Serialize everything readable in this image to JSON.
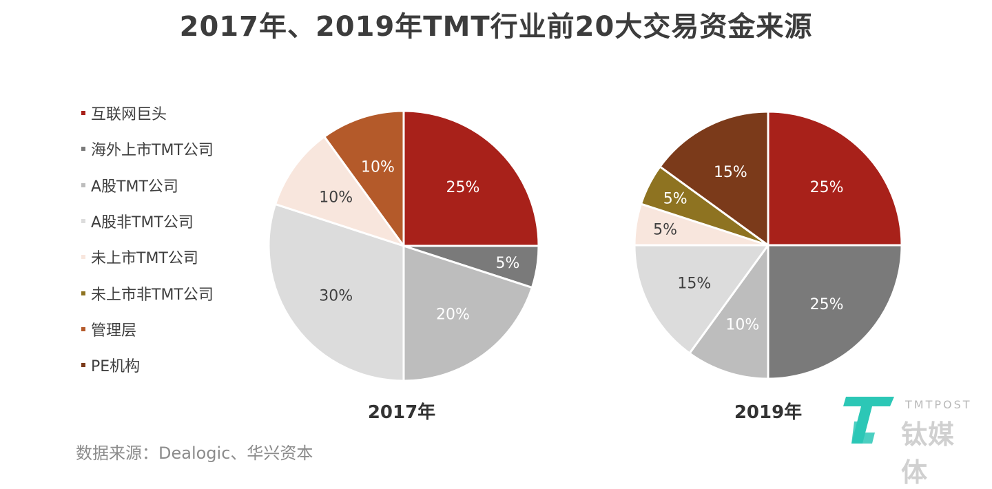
{
  "title": "2017年、2019年TMT行业前20大交易资金来源",
  "source": "数据来源：Dealogic、华兴资本",
  "logo": {
    "en": "TMTPOST",
    "cn": "钛媒体"
  },
  "legend": [
    {
      "label": "互联网巨头",
      "color": "#a8211a"
    },
    {
      "label": "海外上市TMT公司",
      "color": "#7a7a7a"
    },
    {
      "label": "A股TMT公司",
      "color": "#bdbdbd"
    },
    {
      "label": "A股非TMT公司",
      "color": "#dcdcdc"
    },
    {
      "label": "未上市TMT公司",
      "color": "#f8e6dd"
    },
    {
      "label": "未上市非TMT公司",
      "color": "#8e7321"
    },
    {
      "label": "管理层",
      "color": "#b45a2a"
    },
    {
      "label": "PE机构",
      "color": "#7b3a1a"
    }
  ],
  "chart_data": [
    {
      "type": "pie",
      "title": "2017年",
      "slices": [
        {
          "name": "互联网巨头",
          "value": 25,
          "label": "25%",
          "color": "#a8211a",
          "label_color": "#ffffff"
        },
        {
          "name": "海外上市TMT公司",
          "value": 5,
          "label": "5%",
          "color": "#7a7a7a",
          "label_color": "#ffffff"
        },
        {
          "name": "A股TMT公司",
          "value": 20,
          "label": "20%",
          "color": "#bdbdbd",
          "label_color": "#ffffff"
        },
        {
          "name": "A股非TMT公司",
          "value": 30,
          "label": "30%",
          "color": "#dcdcdc",
          "label_color": "#404040"
        },
        {
          "name": "未上市TMT公司",
          "value": 10,
          "label": "10%",
          "color": "#f8e6dd",
          "label_color": "#404040"
        },
        {
          "name": "管理层",
          "value": 10,
          "label": "10%",
          "color": "#b45a2a",
          "label_color": "#ffffff"
        }
      ]
    },
    {
      "type": "pie",
      "title": "2019年",
      "slices": [
        {
          "name": "互联网巨头",
          "value": 25,
          "label": "25%",
          "color": "#a8211a",
          "label_color": "#ffffff"
        },
        {
          "name": "海外上市TMT公司",
          "value": 25,
          "label": "25%",
          "color": "#7a7a7a",
          "label_color": "#ffffff"
        },
        {
          "name": "A股TMT公司",
          "value": 10,
          "label": "10%",
          "color": "#bdbdbd",
          "label_color": "#ffffff"
        },
        {
          "name": "A股非TMT公司",
          "value": 15,
          "label": "15%",
          "color": "#dcdcdc",
          "label_color": "#404040"
        },
        {
          "name": "未上市TMT公司",
          "value": 5,
          "label": "5%",
          "color": "#f8e6dd",
          "label_color": "#404040"
        },
        {
          "name": "未上市非TMT公司",
          "value": 5,
          "label": "5%",
          "color": "#8e7321",
          "label_color": "#ffffff"
        },
        {
          "name": "PE机构",
          "value": 15,
          "label": "15%",
          "color": "#7b3a1a",
          "label_color": "#ffffff"
        }
      ]
    }
  ]
}
